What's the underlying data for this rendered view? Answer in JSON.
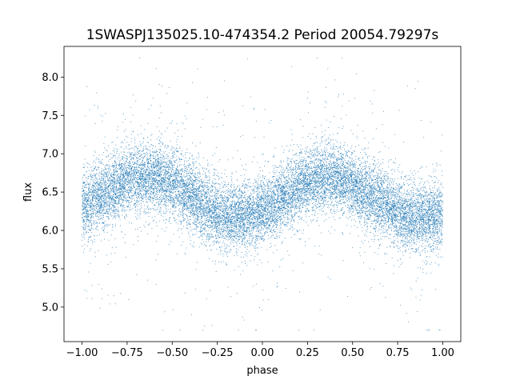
{
  "chart_data": {
    "type": "scatter",
    "title": "1SWASPJ135025.10-474354.2 Period 20054.79297s",
    "xlabel": "phase",
    "ylabel": "flux",
    "xlim": [
      -1.1,
      1.1
    ],
    "ylim": [
      4.55,
      8.4
    ],
    "x_ticks": [
      -1.0,
      -0.75,
      -0.5,
      -0.25,
      0.0,
      0.25,
      0.5,
      0.75,
      1.0
    ],
    "x_tick_labels": [
      "−1.00",
      "−0.75",
      "−0.50",
      "−0.25",
      "0.00",
      "0.25",
      "0.50",
      "0.75",
      "1.00"
    ],
    "y_ticks": [
      5.0,
      5.5,
      6.0,
      6.5,
      7.0,
      7.5,
      8.0
    ],
    "y_tick_labels": [
      "5.0",
      "5.5",
      "6.0",
      "6.5",
      "7.0",
      "7.5",
      "8.0"
    ],
    "grid": false,
    "marker_color": "#1f77b4",
    "series": [
      {
        "phase_range": [
          -1.0,
          1.0
        ],
        "mean_flux": 6.43,
        "amplitude": 0.27,
        "peak_phase": 0.35,
        "trough_phase": -0.15,
        "flux_scatter_sd": 0.22,
        "curve": {
          "phase": [
            -1.0,
            -0.9,
            -0.8,
            -0.7,
            -0.6,
            -0.5,
            -0.4,
            -0.3,
            -0.2,
            -0.1,
            0.0,
            0.1,
            0.2,
            0.3,
            0.4,
            0.5,
            0.6,
            0.7,
            0.8,
            0.9,
            1.0
          ],
          "flux": [
            6.3,
            6.45,
            6.6,
            6.7,
            6.7,
            6.62,
            6.45,
            6.28,
            6.17,
            6.18,
            6.25,
            6.4,
            6.57,
            6.67,
            6.7,
            6.6,
            6.45,
            6.3,
            6.17,
            6.15,
            6.2
          ]
        }
      }
    ]
  }
}
